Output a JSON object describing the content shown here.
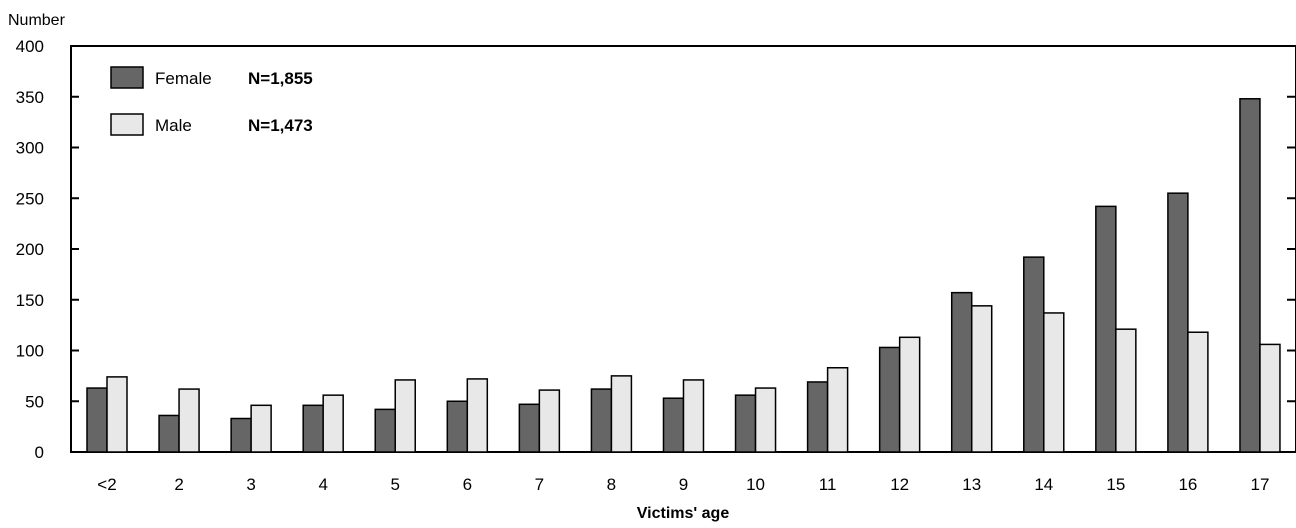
{
  "chart_data": {
    "type": "bar",
    "title": "",
    "ylabel": "Number",
    "xlabel": "Victims' age",
    "ylim": [
      0,
      400
    ],
    "yticks": [
      0,
      50,
      100,
      150,
      200,
      250,
      300,
      350,
      400
    ],
    "grid": false,
    "legend_position": "top-left",
    "categories": [
      "<2",
      "2",
      "3",
      "4",
      "5",
      "6",
      "7",
      "8",
      "9",
      "10",
      "11",
      "12",
      "13",
      "14",
      "15",
      "16",
      "17"
    ],
    "series": [
      {
        "name": "Female",
        "total_label": "N=1,855",
        "color": "#666666",
        "values": [
          63,
          36,
          33,
          46,
          42,
          50,
          47,
          62,
          53,
          56,
          69,
          103,
          157,
          192,
          242,
          255,
          348
        ]
      },
      {
        "name": "Male",
        "total_label": "N=1,473",
        "color": "#e8e8e8",
        "values": [
          74,
          62,
          46,
          56,
          71,
          72,
          61,
          75,
          71,
          63,
          83,
          113,
          144,
          137,
          121,
          118,
          106
        ]
      }
    ]
  }
}
